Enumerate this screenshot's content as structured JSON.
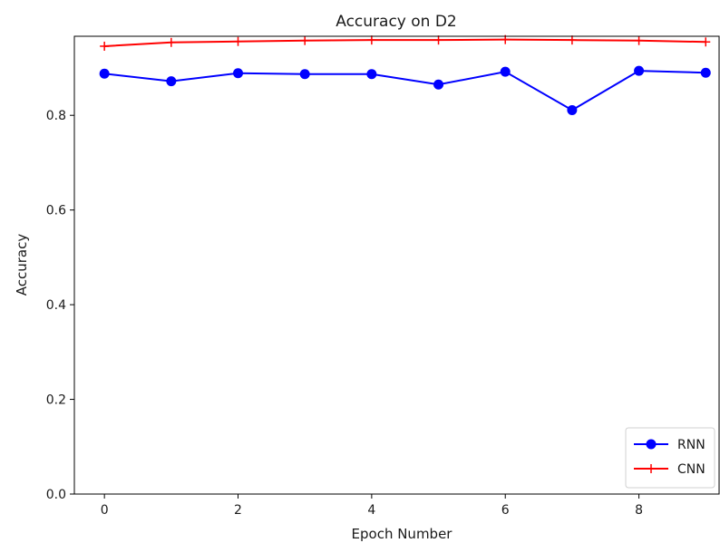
{
  "chart_data": {
    "type": "line",
    "title": "Accuracy on D2",
    "xlabel": "Epoch Number",
    "ylabel": "Accuracy",
    "x": [
      0,
      1,
      2,
      3,
      4,
      5,
      6,
      7,
      8,
      9
    ],
    "xlim": [
      -0.45,
      9.2
    ],
    "ylim": [
      0,
      0.967
    ],
    "xticks": [
      0,
      2,
      4,
      6,
      8
    ],
    "yticks": [
      0.0,
      0.2,
      0.4,
      0.6,
      0.8
    ],
    "ytick_labels": [
      "0.0",
      "0.2",
      "0.4",
      "0.6",
      "0.8"
    ],
    "xtick_labels": [
      "0",
      "2",
      "4",
      "6",
      "8"
    ],
    "grid": false,
    "legend_position": "lower-right",
    "series": [
      {
        "name": "RNN",
        "color": "#0000ff",
        "marker": "circle",
        "values": [
          0.888,
          0.872,
          0.889,
          0.887,
          0.887,
          0.865,
          0.892,
          0.811,
          0.894,
          0.89
        ]
      },
      {
        "name": "CNN",
        "color": "#ff0000",
        "marker": "plus",
        "values": [
          0.946,
          0.954,
          0.956,
          0.958,
          0.959,
          0.959,
          0.96,
          0.959,
          0.958,
          0.955
        ]
      }
    ]
  }
}
